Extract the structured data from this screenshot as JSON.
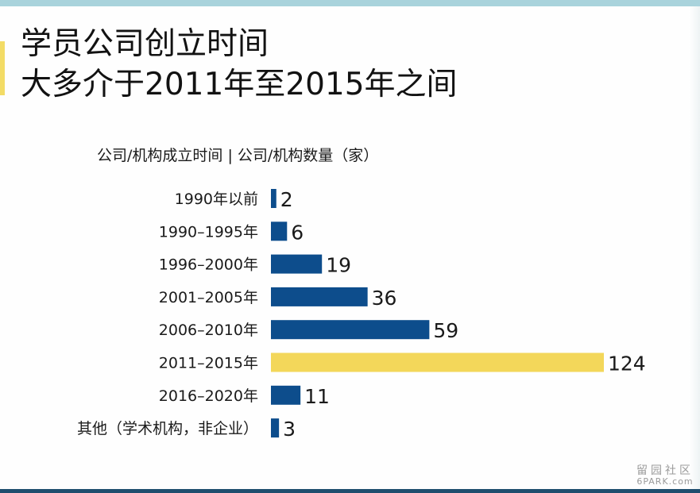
{
  "title": {
    "line1": "学员公司创立时间",
    "line2": "大多介于2011年至2015年之间"
  },
  "header": "公司/机构成立时间 | 公司/机构数量（家）",
  "colors": {
    "bar_default": "#0d4d8c",
    "bar_highlight": "#f3d75a",
    "text": "#1a1a1a",
    "top_strip": "#a9d3dc",
    "accent": "#f3dc66"
  },
  "chart_data": {
    "type": "bar",
    "orientation": "horizontal",
    "categories": [
      "1990年以前",
      "1990–1995年",
      "1996–2000年",
      "2001–2005年",
      "2006–2010年",
      "2011–2015年",
      "2016–2020年",
      "其他（学术机构，非企业）"
    ],
    "values": [
      2,
      6,
      19,
      36,
      59,
      124,
      11,
      3
    ],
    "highlight_category": "2011–2015年",
    "data_labels": true,
    "axes_visible": false,
    "grid": false
  },
  "watermark": {
    "main": "留园社区",
    "sub": "6PARK.com"
  }
}
